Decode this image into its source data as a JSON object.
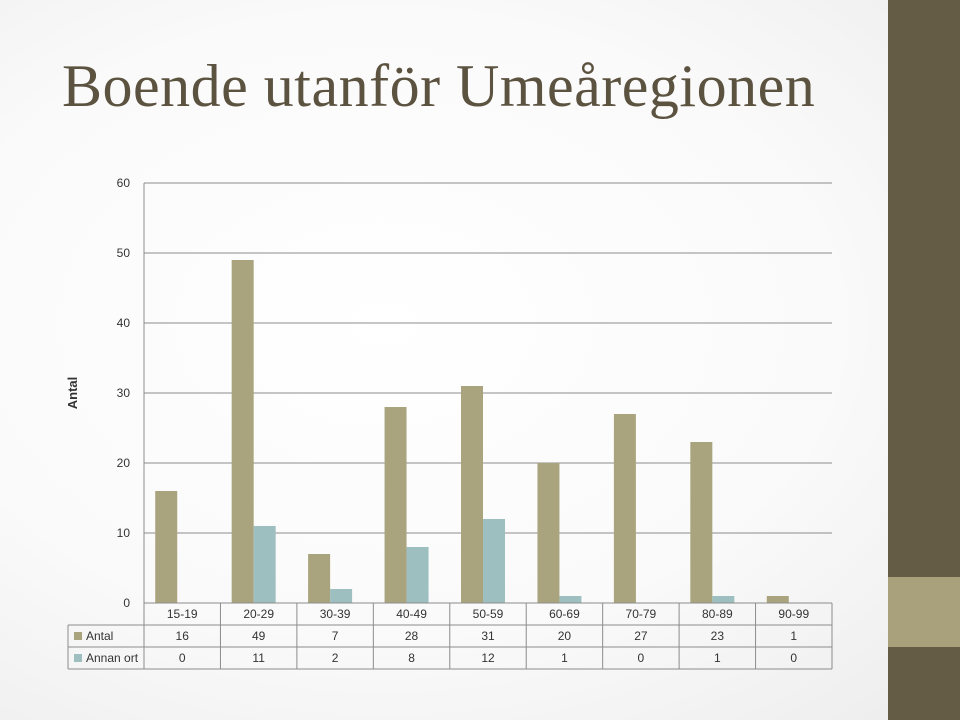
{
  "slide": {
    "title": "Boende utanför Umeåregionen"
  },
  "colors": {
    "antal": "#aaa47e",
    "annan_ort": "#9ebfc0",
    "sidebar": "#655c46",
    "sidebar_accent": "#a8a17b",
    "title": "#5b5240"
  },
  "chart_data": {
    "type": "bar",
    "title": "",
    "xlabel": "",
    "ylabel": "Antal",
    "ylim": [
      0,
      60
    ],
    "yticks": [
      0,
      10,
      20,
      30,
      40,
      50,
      60
    ],
    "grid": true,
    "legend": "data-table",
    "categories": [
      "15-19",
      "20-29",
      "30-39",
      "40-49",
      "50-59",
      "60-69",
      "70-79",
      "80-89",
      "90-99"
    ],
    "series": [
      {
        "name": "Antal",
        "values": [
          16,
          49,
          7,
          28,
          31,
          20,
          27,
          23,
          1
        ]
      },
      {
        "name": "Annan ort",
        "values": [
          0,
          11,
          2,
          8,
          12,
          1,
          0,
          1,
          0
        ]
      }
    ]
  }
}
